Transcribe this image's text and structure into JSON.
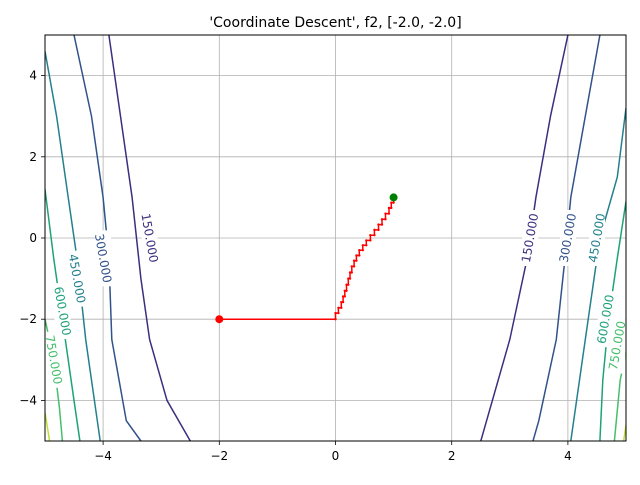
{
  "chart_data": {
    "type": "contour",
    "title": "'Coordinate Descent', f2, [-2.0, -2.0]",
    "xlabel": "",
    "ylabel": "",
    "xlim": [
      -5,
      5
    ],
    "ylim": [
      -5,
      5
    ],
    "grid": true,
    "x_ticks": [
      -4,
      -2,
      0,
      2,
      4
    ],
    "y_ticks": [
      -4,
      -2,
      0,
      2,
      4
    ],
    "x_tick_labels": [
      "−4",
      "−2",
      "0",
      "2",
      "4"
    ],
    "y_tick_labels": [
      "−4",
      "−2",
      "0",
      "2",
      "4"
    ],
    "contour_levels": [
      {
        "level": 150000,
        "label": "150.000",
        "color": "#3b2f7e",
        "left_branch": [
          [
            -3.9,
            5.0
          ],
          [
            -3.7,
            3.0
          ],
          [
            -3.5,
            1.0
          ],
          [
            -3.35,
            -1.0
          ],
          [
            -3.2,
            -2.5
          ],
          [
            -2.9,
            -4.0
          ],
          [
            -2.5,
            -5.0
          ]
        ],
        "right_branch": [
          [
            4.0,
            5.0
          ],
          [
            3.7,
            3.0
          ],
          [
            3.45,
            1.0
          ],
          [
            3.3,
            -0.5
          ],
          [
            3.0,
            -2.5
          ],
          [
            2.6,
            -4.5
          ],
          [
            2.5,
            -5.0
          ]
        ],
        "label_positions": [
          [
            -3.2,
            0.0
          ],
          [
            3.35,
            0.0
          ]
        ]
      },
      {
        "level": 300000,
        "label": "300.000",
        "color": "#31528b",
        "left_branch": [
          [
            -4.5,
            5.0
          ],
          [
            -4.2,
            3.0
          ],
          [
            -4.0,
            1.0
          ],
          [
            -3.9,
            -0.5
          ],
          [
            -3.85,
            -2.5
          ],
          [
            -3.6,
            -4.5
          ],
          [
            -3.35,
            -5.0
          ]
        ],
        "right_branch": [
          [
            4.55,
            5.0
          ],
          [
            4.3,
            3.0
          ],
          [
            4.05,
            1.0
          ],
          [
            3.95,
            -0.5
          ],
          [
            3.8,
            -2.5
          ],
          [
            3.5,
            -4.5
          ],
          [
            3.4,
            -5.0
          ]
        ],
        "label_positions": [
          [
            -4.0,
            -0.5
          ],
          [
            4.0,
            0.0
          ]
        ]
      },
      {
        "level": 450000,
        "label": "450.000",
        "color": "#23808e",
        "left_branch": [
          [
            -5.0,
            4.6
          ],
          [
            -4.8,
            3.0
          ],
          [
            -4.6,
            1.0
          ],
          [
            -4.45,
            -0.5
          ],
          [
            -4.3,
            -2.5
          ],
          [
            -4.1,
            -4.5
          ],
          [
            -4.05,
            -5.0
          ]
        ],
        "right_branch": [
          [
            5.0,
            3.2
          ],
          [
            4.85,
            1.5
          ],
          [
            4.55,
            0.0
          ],
          [
            4.35,
            -2.0
          ],
          [
            4.2,
            -3.5
          ],
          [
            4.05,
            -5.0
          ]
        ],
        "label_positions": [
          [
            -4.45,
            -1.0
          ],
          [
            4.5,
            0.0
          ]
        ]
      },
      {
        "level": 600000,
        "label": "600.000",
        "color": "#1ea27b",
        "left_branch": [
          [
            -5.0,
            1.2
          ],
          [
            -4.85,
            -0.5
          ],
          [
            -4.7,
            -2.0
          ],
          [
            -4.5,
            -4.0
          ],
          [
            -4.4,
            -5.0
          ]
        ],
        "right_branch": [
          [
            5.0,
            0.9
          ],
          [
            4.85,
            -0.5
          ],
          [
            4.7,
            -2.0
          ],
          [
            4.6,
            -3.5
          ],
          [
            4.55,
            -5.0
          ]
        ],
        "label_positions": [
          [
            -4.7,
            -1.8
          ],
          [
            4.65,
            -2.0
          ]
        ]
      },
      {
        "level": 750000,
        "label": "750.000",
        "color": "#46bf6c",
        "left_branch": [
          [
            -5.0,
            -2.0
          ],
          [
            -4.85,
            -3.0
          ],
          [
            -4.75,
            -4.2
          ],
          [
            -4.7,
            -5.0
          ]
        ],
        "right_branch": [
          [
            5.0,
            -2.8
          ],
          [
            4.9,
            -3.5
          ],
          [
            4.8,
            -5.0
          ]
        ],
        "label_positions": [
          [
            -4.85,
            -3.0
          ],
          [
            4.85,
            -2.65
          ]
        ]
      },
      {
        "level": 900000,
        "label": "",
        "color": "#bde036",
        "left_branch": [
          [
            -5.0,
            -4.3
          ],
          [
            -4.92,
            -5.0
          ]
        ],
        "right_branch": [
          [
            5.0,
            -4.6
          ],
          [
            4.96,
            -5.0
          ]
        ],
        "label_positions": []
      }
    ],
    "path": {
      "color": "#ff0000",
      "points": [
        [
          -2.0,
          -2.0
        ],
        [
          0.0,
          -2.0
        ],
        [
          0.0,
          -1.85
        ],
        [
          0.05,
          -1.85
        ],
        [
          0.05,
          -1.72
        ],
        [
          0.1,
          -1.72
        ],
        [
          0.1,
          -1.58
        ],
        [
          0.13,
          -1.58
        ],
        [
          0.13,
          -1.44
        ],
        [
          0.16,
          -1.44
        ],
        [
          0.16,
          -1.3
        ],
        [
          0.19,
          -1.3
        ],
        [
          0.19,
          -1.15
        ],
        [
          0.22,
          -1.15
        ],
        [
          0.22,
          -1.0
        ],
        [
          0.25,
          -1.0
        ],
        [
          0.25,
          -0.85
        ],
        [
          0.28,
          -0.85
        ],
        [
          0.28,
          -0.7
        ],
        [
          0.32,
          -0.7
        ],
        [
          0.32,
          -0.56
        ],
        [
          0.36,
          -0.56
        ],
        [
          0.36,
          -0.43
        ],
        [
          0.41,
          -0.43
        ],
        [
          0.41,
          -0.3
        ],
        [
          0.47,
          -0.3
        ],
        [
          0.47,
          -0.18
        ],
        [
          0.53,
          -0.18
        ],
        [
          0.53,
          -0.06
        ],
        [
          0.6,
          -0.06
        ],
        [
          0.6,
          0.07
        ],
        [
          0.67,
          0.07
        ],
        [
          0.67,
          0.2
        ],
        [
          0.74,
          0.2
        ],
        [
          0.74,
          0.33
        ],
        [
          0.8,
          0.33
        ],
        [
          0.8,
          0.46
        ],
        [
          0.86,
          0.46
        ],
        [
          0.86,
          0.6
        ],
        [
          0.92,
          0.6
        ],
        [
          0.92,
          0.74
        ],
        [
          0.96,
          0.74
        ],
        [
          0.96,
          0.87
        ],
        [
          1.0,
          0.87
        ],
        [
          1.0,
          1.0
        ]
      ],
      "start_marker": {
        "x": -2.0,
        "y": -2.0,
        "color": "#ff0000"
      },
      "end_marker": {
        "x": 1.0,
        "y": 1.0,
        "color": "#008000"
      }
    }
  }
}
